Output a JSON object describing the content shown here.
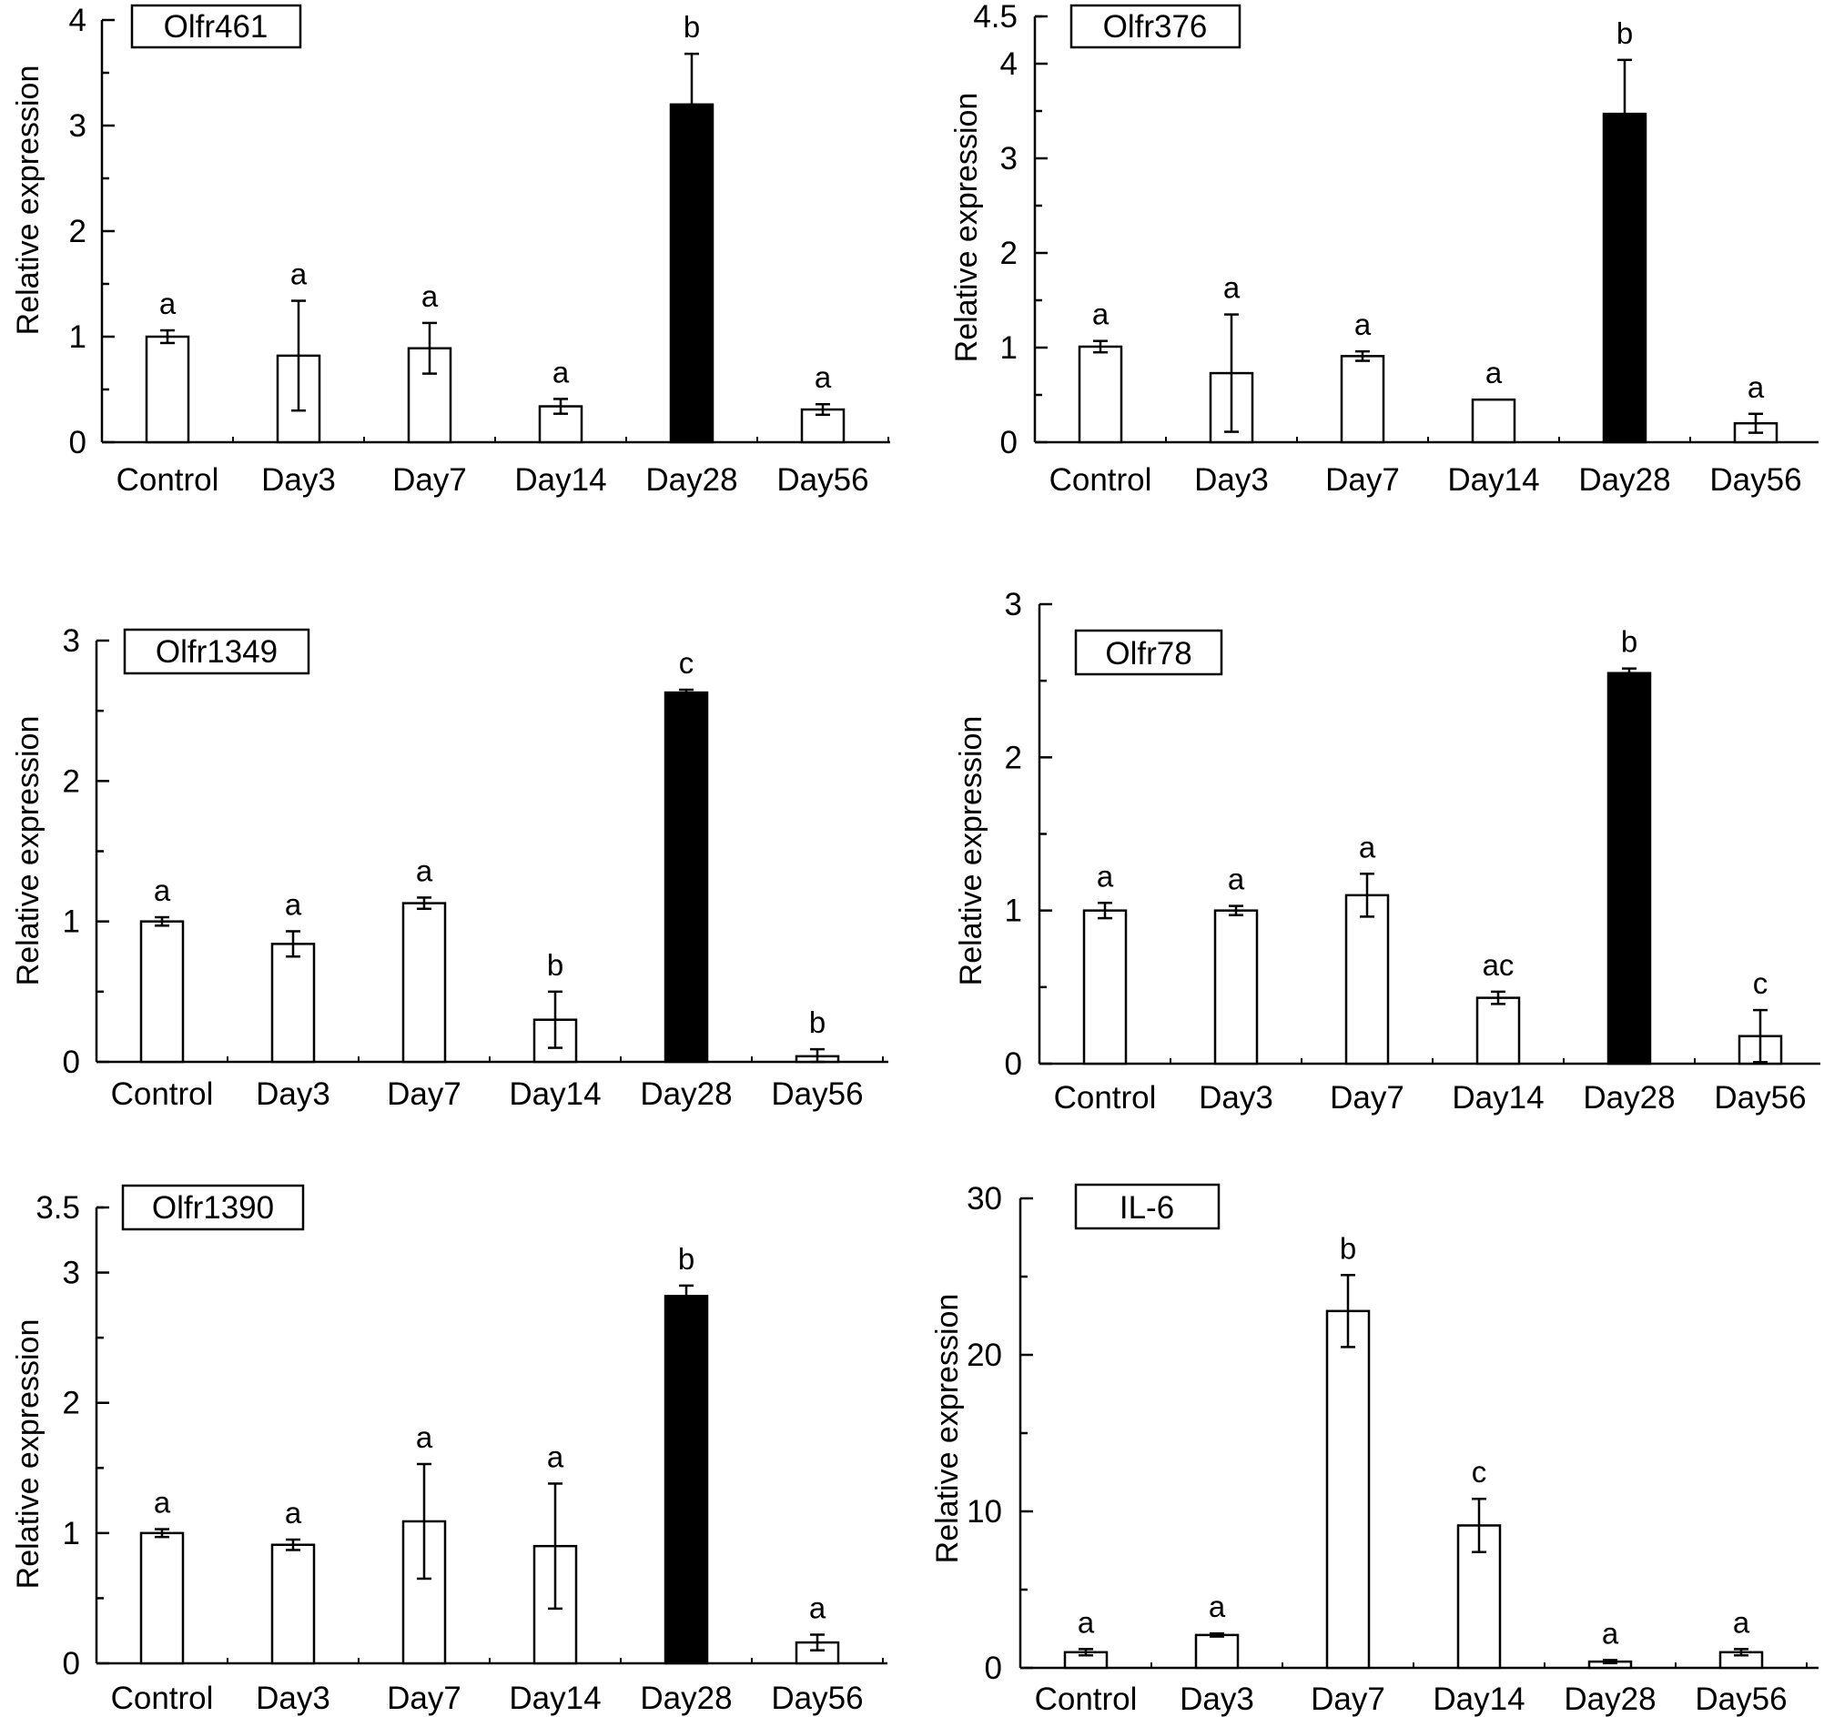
{
  "figure": {
    "panels_count": 6
  },
  "chart_data": [
    {
      "type": "bar",
      "title": "Olfr461",
      "ylabel": "Relative expression",
      "xlabel": "",
      "ylim": [
        0,
        4
      ],
      "yticks": [
        "0",
        "1",
        "2",
        "3",
        "4"
      ],
      "categories": [
        "Control",
        "Day3",
        "Day7",
        "Day14",
        "Day28",
        "Day56"
      ],
      "series": [
        {
          "name": "Relative expression",
          "values": [
            1.0,
            0.82,
            0.89,
            0.34,
            3.2,
            0.31
          ]
        }
      ],
      "errors": [
        0.06,
        0.52,
        0.24,
        0.07,
        0.48,
        0.05
      ],
      "significance": [
        "a",
        "a",
        "a",
        "a",
        "b",
        "a"
      ],
      "highlight_color": "#000000",
      "bar_color": "#ffffff"
    },
    {
      "type": "bar",
      "title": "Olfr376",
      "ylabel": "Relative expression",
      "xlabel": "",
      "ylim": [
        0,
        4.5
      ],
      "yticks": [
        "0",
        "1",
        "2",
        "3",
        "4",
        "4.5"
      ],
      "categories": [
        "Control",
        "Day3",
        "Day7",
        "Day14",
        "Day28",
        "Day56"
      ],
      "series": [
        {
          "name": "Relative expression",
          "values": [
            1.01,
            0.73,
            0.91,
            0.45,
            3.47,
            0.2
          ]
        }
      ],
      "errors": [
        0.06,
        0.62,
        0.05,
        0.0,
        0.57,
        0.1
      ],
      "significance": [
        "a",
        "a",
        "a",
        "a",
        "b",
        "a"
      ],
      "highlight_color": "#000000",
      "bar_color": "#ffffff"
    },
    {
      "type": "bar",
      "title": "Olfr1349",
      "ylabel": "Relative expression",
      "xlabel": "",
      "ylim": [
        0,
        3
      ],
      "yticks": [
        "0",
        "1",
        "2",
        "3"
      ],
      "categories": [
        "Control",
        "Day3",
        "Day7",
        "Day14",
        "Day28",
        "Day56"
      ],
      "series": [
        {
          "name": "Relative expression",
          "values": [
            1.0,
            0.84,
            1.13,
            0.3,
            2.63,
            0.04
          ]
        }
      ],
      "errors": [
        0.03,
        0.09,
        0.04,
        0.2,
        0.02,
        0.05
      ],
      "significance": [
        "a",
        "a",
        "a",
        "b",
        "c",
        "b"
      ],
      "highlight_color": "#000000",
      "bar_color": "#ffffff"
    },
    {
      "type": "bar",
      "title": "Olfr78",
      "ylabel": "Relative expression",
      "xlabel": "",
      "ylim": [
        0,
        3
      ],
      "yticks": [
        "0",
        "1",
        "2",
        "3"
      ],
      "categories": [
        "Control",
        "Day3",
        "Day7",
        "Day14",
        "Day28",
        "Day56"
      ],
      "series": [
        {
          "name": "Relative expression",
          "values": [
            1.0,
            1.0,
            1.1,
            0.43,
            2.55,
            0.18
          ]
        }
      ],
      "errors": [
        0.05,
        0.03,
        0.14,
        0.04,
        0.03,
        0.17
      ],
      "significance": [
        "a",
        "a",
        "a",
        "ac",
        "b",
        "c"
      ],
      "highlight_color": "#000000",
      "bar_color": "#ffffff"
    },
    {
      "type": "bar",
      "title": "Olfr1390",
      "ylabel": "Relative expression",
      "xlabel": "",
      "ylim": [
        0,
        3.5
      ],
      "yticks": [
        "0",
        "1",
        "2",
        "3",
        "3.5"
      ],
      "categories": [
        "Control",
        "Day3",
        "Day7",
        "Day14",
        "Day28",
        "Day56"
      ],
      "series": [
        {
          "name": "Relative expression",
          "values": [
            1.0,
            0.91,
            1.09,
            0.9,
            2.82,
            0.16
          ]
        }
      ],
      "errors": [
        0.03,
        0.04,
        0.44,
        0.48,
        0.08,
        0.06
      ],
      "significance": [
        "a",
        "a",
        "a",
        "a",
        "b",
        "a"
      ],
      "highlight_color": "#000000",
      "bar_color": "#ffffff"
    },
    {
      "type": "bar",
      "title": "IL-6",
      "ylabel": "Relative expression",
      "xlabel": "",
      "ylim": [
        0,
        30
      ],
      "yticks": [
        "0",
        "10",
        "20",
        "30"
      ],
      "categories": [
        "Control",
        "Day3",
        "Day7",
        "Day14",
        "Day28",
        "Day56"
      ],
      "series": [
        {
          "name": "Relative expression",
          "values": [
            1.0,
            2.1,
            22.8,
            9.1,
            0.4,
            1.0
          ]
        }
      ],
      "errors": [
        0.2,
        0.1,
        2.3,
        1.7,
        0.1,
        0.2
      ],
      "significance": [
        "a",
        "a",
        "b",
        "c",
        "a",
        "a"
      ],
      "highlight_color": "#000000",
      "bar_color": "#ffffff"
    }
  ]
}
